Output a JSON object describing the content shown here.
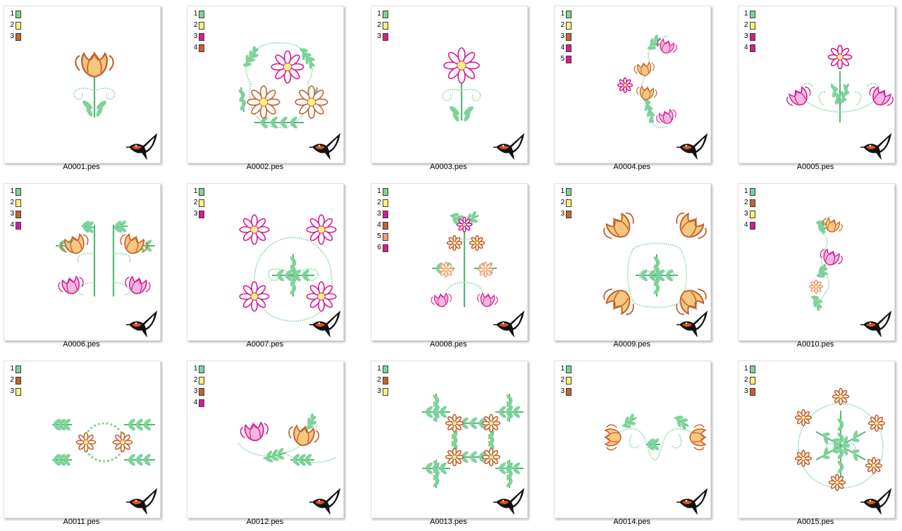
{
  "colors": {
    "green": "#7ed39a",
    "yellow": "#fff176",
    "brown": "#c4632e",
    "magenta": "#d41d92",
    "peach": "#f3a07a"
  },
  "files": [
    {
      "name": "A0001.pes",
      "art": "single-tulip",
      "swatches": [
        {
          "n": "1",
          "color": "green"
        },
        {
          "n": "2",
          "color": "yellow"
        },
        {
          "n": "3",
          "color": "brown"
        }
      ]
    },
    {
      "name": "A0002.pes",
      "art": "wreath-three",
      "swatches": [
        {
          "n": "1",
          "color": "green"
        },
        {
          "n": "2",
          "color": "yellow"
        },
        {
          "n": "3",
          "color": "magenta"
        },
        {
          "n": "4",
          "color": "brown"
        }
      ]
    },
    {
      "name": "A0003.pes",
      "art": "single-daisy",
      "swatches": [
        {
          "n": "1",
          "color": "green"
        },
        {
          "n": "2",
          "color": "yellow"
        },
        {
          "n": "3",
          "color": "magenta"
        }
      ]
    },
    {
      "name": "A0004.pes",
      "art": "side-vine",
      "swatches": [
        {
          "n": "1",
          "color": "green"
        },
        {
          "n": "2",
          "color": "yellow"
        },
        {
          "n": "3",
          "color": "brown"
        },
        {
          "n": "4",
          "color": "magenta"
        },
        {
          "n": "5",
          "color": "magenta"
        }
      ]
    },
    {
      "name": "A0005.pes",
      "art": "triple-bloom",
      "swatches": [
        {
          "n": "1",
          "color": "green"
        },
        {
          "n": "2",
          "color": "yellow"
        },
        {
          "n": "3",
          "color": "magenta"
        },
        {
          "n": "4",
          "color": "magenta"
        }
      ]
    },
    {
      "name": "A0006.pes",
      "art": "four-corner-tulips",
      "swatches": [
        {
          "n": "1",
          "color": "green"
        },
        {
          "n": "2",
          "color": "yellow"
        },
        {
          "n": "3",
          "color": "brown"
        },
        {
          "n": "4",
          "color": "magenta"
        }
      ]
    },
    {
      "name": "A0007.pes",
      "art": "four-daisies",
      "swatches": [
        {
          "n": "1",
          "color": "green"
        },
        {
          "n": "2",
          "color": "yellow"
        },
        {
          "n": "3",
          "color": "magenta"
        }
      ]
    },
    {
      "name": "A0008.pes",
      "art": "tall-cluster",
      "swatches": [
        {
          "n": "1",
          "color": "green"
        },
        {
          "n": "2",
          "color": "yellow"
        },
        {
          "n": "3",
          "color": "magenta"
        },
        {
          "n": "4",
          "color": "brown"
        },
        {
          "n": "5",
          "color": "peach"
        },
        {
          "n": "6",
          "color": "magenta"
        }
      ]
    },
    {
      "name": "A0009.pes",
      "art": "four-tulips-square",
      "swatches": [
        {
          "n": "1",
          "color": "green"
        },
        {
          "n": "2",
          "color": "yellow"
        },
        {
          "n": "3",
          "color": "brown"
        }
      ]
    },
    {
      "name": "A0010.pes",
      "art": "small-vine",
      "swatches": [
        {
          "n": "1",
          "color": "green"
        },
        {
          "n": "2",
          "color": "brown"
        },
        {
          "n": "3",
          "color": "yellow"
        },
        {
          "n": "4",
          "color": "magenta"
        }
      ]
    },
    {
      "name": "A0011.pes",
      "art": "horizontal-border",
      "swatches": [
        {
          "n": "1",
          "color": "green"
        },
        {
          "n": "2",
          "color": "brown"
        },
        {
          "n": "3",
          "color": "yellow"
        }
      ]
    },
    {
      "name": "A0012.pes",
      "art": "two-tulip-spray",
      "swatches": [
        {
          "n": "1",
          "color": "green"
        },
        {
          "n": "2",
          "color": "yellow"
        },
        {
          "n": "3",
          "color": "brown"
        },
        {
          "n": "4",
          "color": "magenta"
        }
      ]
    },
    {
      "name": "A0013.pes",
      "art": "leafy-frame",
      "swatches": [
        {
          "n": "1",
          "color": "green"
        },
        {
          "n": "2",
          "color": "brown"
        },
        {
          "n": "3",
          "color": "yellow"
        }
      ]
    },
    {
      "name": "A0014.pes",
      "art": "heart-swag",
      "swatches": [
        {
          "n": "1",
          "color": "green"
        },
        {
          "n": "2",
          "color": "yellow"
        },
        {
          "n": "3",
          "color": "brown"
        }
      ]
    },
    {
      "name": "A0015.pes",
      "art": "round-wreath",
      "swatches": [
        {
          "n": "1",
          "color": "green"
        },
        {
          "n": "2",
          "color": "yellow"
        },
        {
          "n": "3",
          "color": "brown"
        }
      ]
    }
  ]
}
